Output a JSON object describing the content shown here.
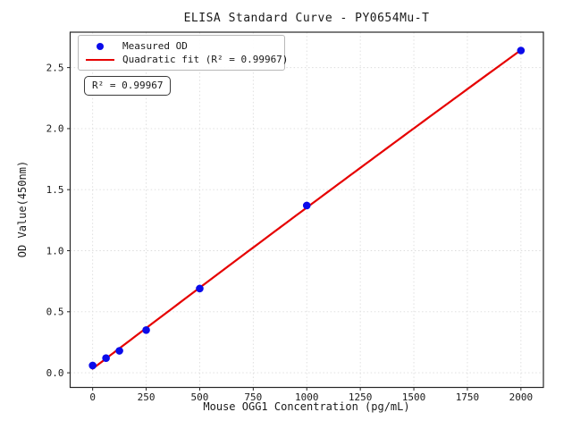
{
  "title": "ELISA Standard Curve - PY0654Mu-T",
  "annotation": "R² = 0.99967",
  "legend": {
    "items": [
      {
        "label": "Measured OD",
        "marker": "dot",
        "color": "#0b0bea"
      },
      {
        "label": "Quadratic fit (R² = 0.99967)",
        "marker": "line",
        "color": "#e60000"
      }
    ],
    "position": "upper left"
  },
  "chart_data": {
    "type": "scatter",
    "title": "ELISA Standard Curve - PY0654Mu-T",
    "xlabel": "Mouse OGG1 Concentration (pg/mL)",
    "ylabel": "OD Value(450nm)",
    "xlim": [
      -105,
      2105
    ],
    "ylim": [
      -0.12,
      2.79
    ],
    "x_ticks": [
      0,
      250,
      500,
      750,
      1000,
      1250,
      1500,
      1750,
      2000
    ],
    "y_ticks": [
      0.0,
      0.5,
      1.0,
      1.5,
      2.0,
      2.5
    ],
    "grid": true,
    "grid_color": "#dcdcdc",
    "series": [
      {
        "name": "Measured OD",
        "type": "scatter",
        "color": "#0b0bea",
        "x": [
          0,
          62.5,
          125,
          250,
          500,
          1000,
          2000
        ],
        "y": [
          0.06,
          0.12,
          0.18,
          0.35,
          0.69,
          1.37,
          2.64
        ]
      },
      {
        "name": "Quadratic fit (R² = 0.99967)",
        "type": "quadratic-fit",
        "color": "#e60000",
        "fit_range": [
          0,
          2000
        ],
        "r_squared": 0.99967
      }
    ]
  }
}
